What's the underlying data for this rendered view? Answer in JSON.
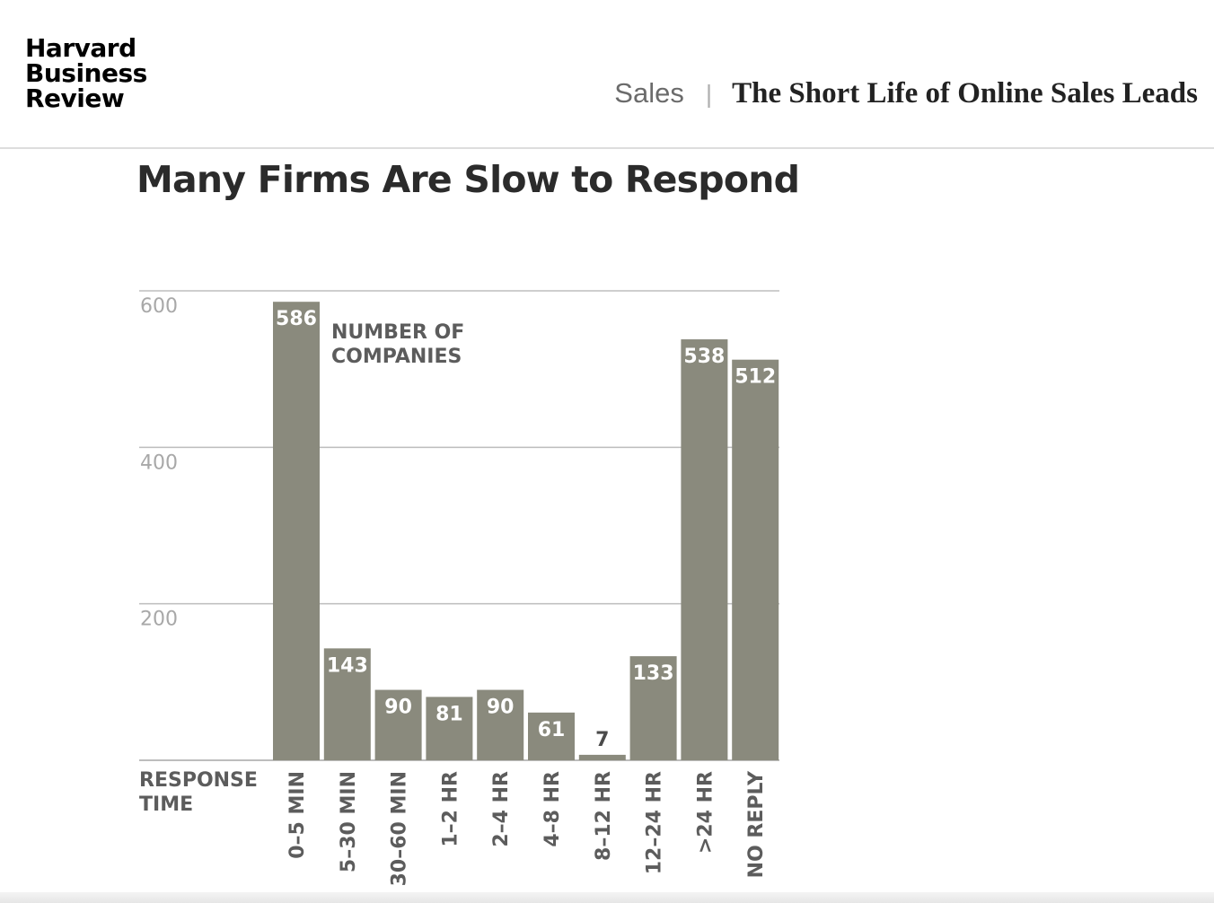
{
  "header": {
    "logo": {
      "line1": "Harvard",
      "line2": "Business",
      "line3": "Review"
    },
    "section": "Sales",
    "separator": "|",
    "article_title": "The Short Life of Online Sales Leads"
  },
  "chart_data": {
    "type": "bar",
    "title": "Many Firms Are Slow to Respond",
    "xlabel": "RESPONSE TIME",
    "ylabel": "",
    "series_label": "NUMBER OF COMPANIES",
    "series_label_lines": [
      "NUMBER OF",
      "COMPANIES"
    ],
    "xlabel_lines": [
      "RESPONSE",
      "TIME"
    ],
    "categories": [
      "0–5 MIN",
      "5–30 MIN",
      "30–60 MIN",
      "1–2 HR",
      "2–4 HR",
      "4–8 HR",
      "8–12 HR",
      "12–24 HR",
      ">24 HR",
      "NO REPLY"
    ],
    "values": [
      586,
      143,
      90,
      81,
      90,
      61,
      7,
      133,
      538,
      512
    ],
    "ylim": [
      0,
      600
    ],
    "yticks": [
      200,
      400,
      600
    ],
    "grid": true,
    "bar_color": "#8a8a7d",
    "grid_color": "#bdbdbd",
    "label_color": "#ffffff",
    "axis_text_color": "#5c5c5c",
    "tick_text_color": "#a8a8a8"
  }
}
